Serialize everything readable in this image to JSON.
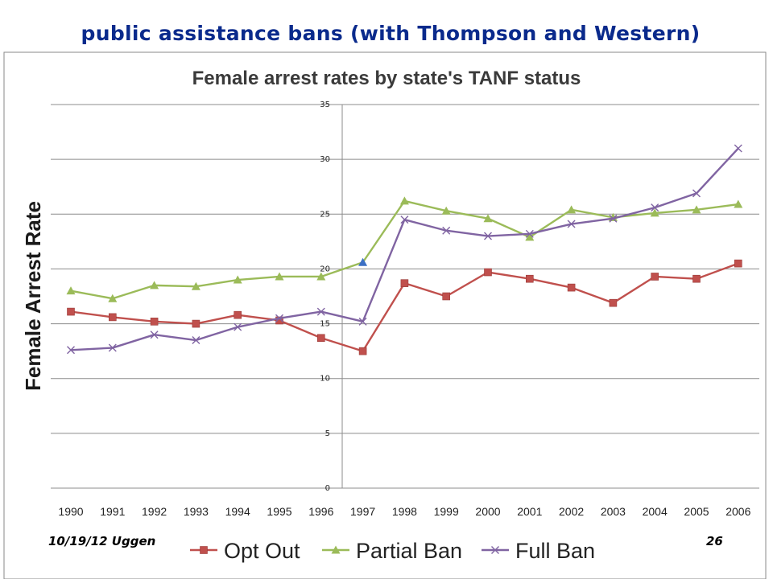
{
  "slide": {
    "title": "public assistance bans (with Thompson and Western)",
    "footer_date": "10/19/12 Uggen",
    "page_number": "26"
  },
  "colors": {
    "title": "#0a2a8c",
    "grid": "#8c8c8c",
    "opt_out": "#c0504d",
    "partial_ban": "#9bbb59",
    "full_ban": "#8064a2",
    "highlight_point": "#3b6fc4"
  },
  "chart_data": {
    "type": "line",
    "title": "Female arrest rates by state's TANF status",
    "xlabel": "",
    "ylabel": "Female Arrest Rate",
    "ylim": [
      0,
      35
    ],
    "yticks": [
      "0",
      "5",
      "10",
      "15",
      "20",
      "25",
      "30",
      "35"
    ],
    "grid": true,
    "legend_position": "bottom",
    "categories": [
      "1990",
      "1991",
      "1992",
      "1993",
      "1994",
      "1995",
      "1996",
      "1997",
      "1998",
      "1999",
      "2000",
      "2001",
      "2002",
      "2003",
      "2004",
      "2005",
      "2006"
    ],
    "series": [
      {
        "name": "Opt Out",
        "marker": "square",
        "color": "#c0504d",
        "values": [
          16.1,
          15.6,
          15.2,
          15.0,
          15.8,
          15.3,
          13.7,
          12.5,
          18.7,
          17.5,
          19.7,
          19.1,
          18.3,
          16.9,
          19.3,
          19.1,
          20.5
        ]
      },
      {
        "name": "Partial Ban",
        "marker": "triangle",
        "color": "#9bbb59",
        "values": [
          18.0,
          17.3,
          18.5,
          18.4,
          19.0,
          19.3,
          19.3,
          20.6,
          26.2,
          25.3,
          24.6,
          22.9,
          25.4,
          24.7,
          25.1,
          25.4,
          25.9
        ]
      },
      {
        "name": "Full Ban",
        "marker": "x",
        "color": "#8064a2",
        "values": [
          12.6,
          12.8,
          14.0,
          13.5,
          14.7,
          15.5,
          16.1,
          15.2,
          24.5,
          23.5,
          23.0,
          23.2,
          24.1,
          24.6,
          25.6,
          26.9,
          31.0
        ]
      }
    ]
  }
}
